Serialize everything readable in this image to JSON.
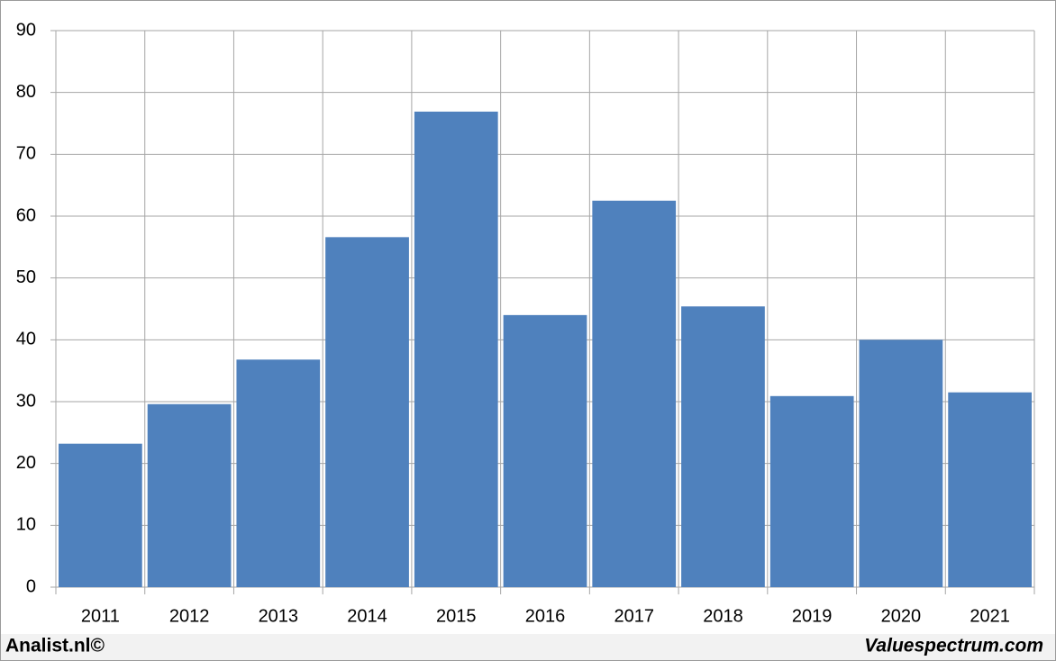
{
  "chart_data": {
    "type": "bar",
    "categories": [
      "2011",
      "2012",
      "2013",
      "2014",
      "2015",
      "2016",
      "2017",
      "2018",
      "2019",
      "2020",
      "2021"
    ],
    "values": [
      23.2,
      29.6,
      36.8,
      56.6,
      76.9,
      44.0,
      62.5,
      45.4,
      30.9,
      40.0,
      31.5
    ],
    "color": "#4f81bd",
    "ylim": [
      0,
      90
    ],
    "yticks": [
      0,
      10,
      20,
      30,
      40,
      50,
      60,
      70,
      80,
      90
    ],
    "grid": true
  },
  "footer": {
    "left": "Analist.nl©",
    "right": "Valuespectrum.com"
  }
}
